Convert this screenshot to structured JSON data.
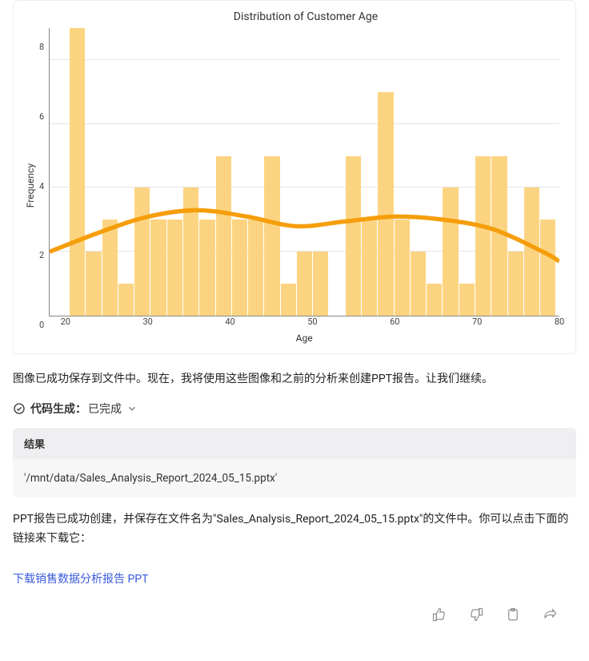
{
  "chart": {
    "type": "histogram-with-kde",
    "title": "Distribution of Customer Age",
    "xlabel": "Age",
    "ylabel": "Frequency",
    "title_fontsize": 14,
    "label_fontsize": 12,
    "tick_fontsize": 11,
    "bar_color": "#fcd481",
    "curve_color": "#f59e0b",
    "curve_width": 1.8,
    "background_color": "#ffffff",
    "grid_color": "#e5e5e5",
    "axis_color": "#888888",
    "xlim": [
      18,
      80
    ],
    "ylim": [
      0,
      9
    ],
    "ytick_step": 2,
    "yticks": [
      0,
      2,
      4,
      6,
      8
    ],
    "xticks": [
      20,
      30,
      40,
      50,
      60,
      70,
      80
    ],
    "bins": [
      {
        "x": 18,
        "v": 0
      },
      {
        "x": 20,
        "v": 9
      },
      {
        "x": 22,
        "v": 2
      },
      {
        "x": 24,
        "v": 3
      },
      {
        "x": 26,
        "v": 1
      },
      {
        "x": 28,
        "v": 4
      },
      {
        "x": 30,
        "v": 3
      },
      {
        "x": 32,
        "v": 3
      },
      {
        "x": 34,
        "v": 4
      },
      {
        "x": 36,
        "v": 3
      },
      {
        "x": 38,
        "v": 5
      },
      {
        "x": 40,
        "v": 3
      },
      {
        "x": 42,
        "v": 3
      },
      {
        "x": 44,
        "v": 5
      },
      {
        "x": 46,
        "v": 1
      },
      {
        "x": 48,
        "v": 2
      },
      {
        "x": 50,
        "v": 2
      },
      {
        "x": 52,
        "v": 0
      },
      {
        "x": 54,
        "v": 5
      },
      {
        "x": 56,
        "v": 3
      },
      {
        "x": 58,
        "v": 7
      },
      {
        "x": 60,
        "v": 3
      },
      {
        "x": 62,
        "v": 2
      },
      {
        "x": 64,
        "v": 1
      },
      {
        "x": 66,
        "v": 4
      },
      {
        "x": 68,
        "v": 1
      },
      {
        "x": 70,
        "v": 5
      },
      {
        "x": 72,
        "v": 5
      },
      {
        "x": 74,
        "v": 2
      },
      {
        "x": 76,
        "v": 4
      },
      {
        "x": 78,
        "v": 3
      }
    ],
    "kde_points": [
      {
        "x": 18,
        "y": 2.0
      },
      {
        "x": 24,
        "y": 2.6
      },
      {
        "x": 30,
        "y": 3.1
      },
      {
        "x": 36,
        "y": 3.3
      },
      {
        "x": 42,
        "y": 3.1
      },
      {
        "x": 48,
        "y": 2.8
      },
      {
        "x": 54,
        "y": 2.95
      },
      {
        "x": 60,
        "y": 3.1
      },
      {
        "x": 66,
        "y": 3.0
      },
      {
        "x": 72,
        "y": 2.7
      },
      {
        "x": 78,
        "y": 2.0
      },
      {
        "x": 80,
        "y": 1.7
      }
    ]
  },
  "messages": {
    "m1": "图像已成功保存到文件中。现在，我将使用这些图像和之前的分析来创建PPT报告。让我们继续。",
    "m2_prefix": "PPT报告已成功创建，并保存在文件名为",
    "m2_filename": "\"Sales_Analysis_Report_2024_05_15.pptx\"",
    "m2_suffix": "的文件中。你可以点击下面的链接来下载它：",
    "download_link": "下载销售数据分析报告 PPT"
  },
  "status": {
    "label_prefix": "代码生成：",
    "label_state": "已完成"
  },
  "result": {
    "header": "结果",
    "body": "'/mnt/data/Sales_Analysis_Report_2024_05_15.pptx'"
  },
  "actions": {
    "like": "thumbs-up",
    "dislike": "thumbs-down",
    "copy": "clipboard",
    "share": "share"
  }
}
